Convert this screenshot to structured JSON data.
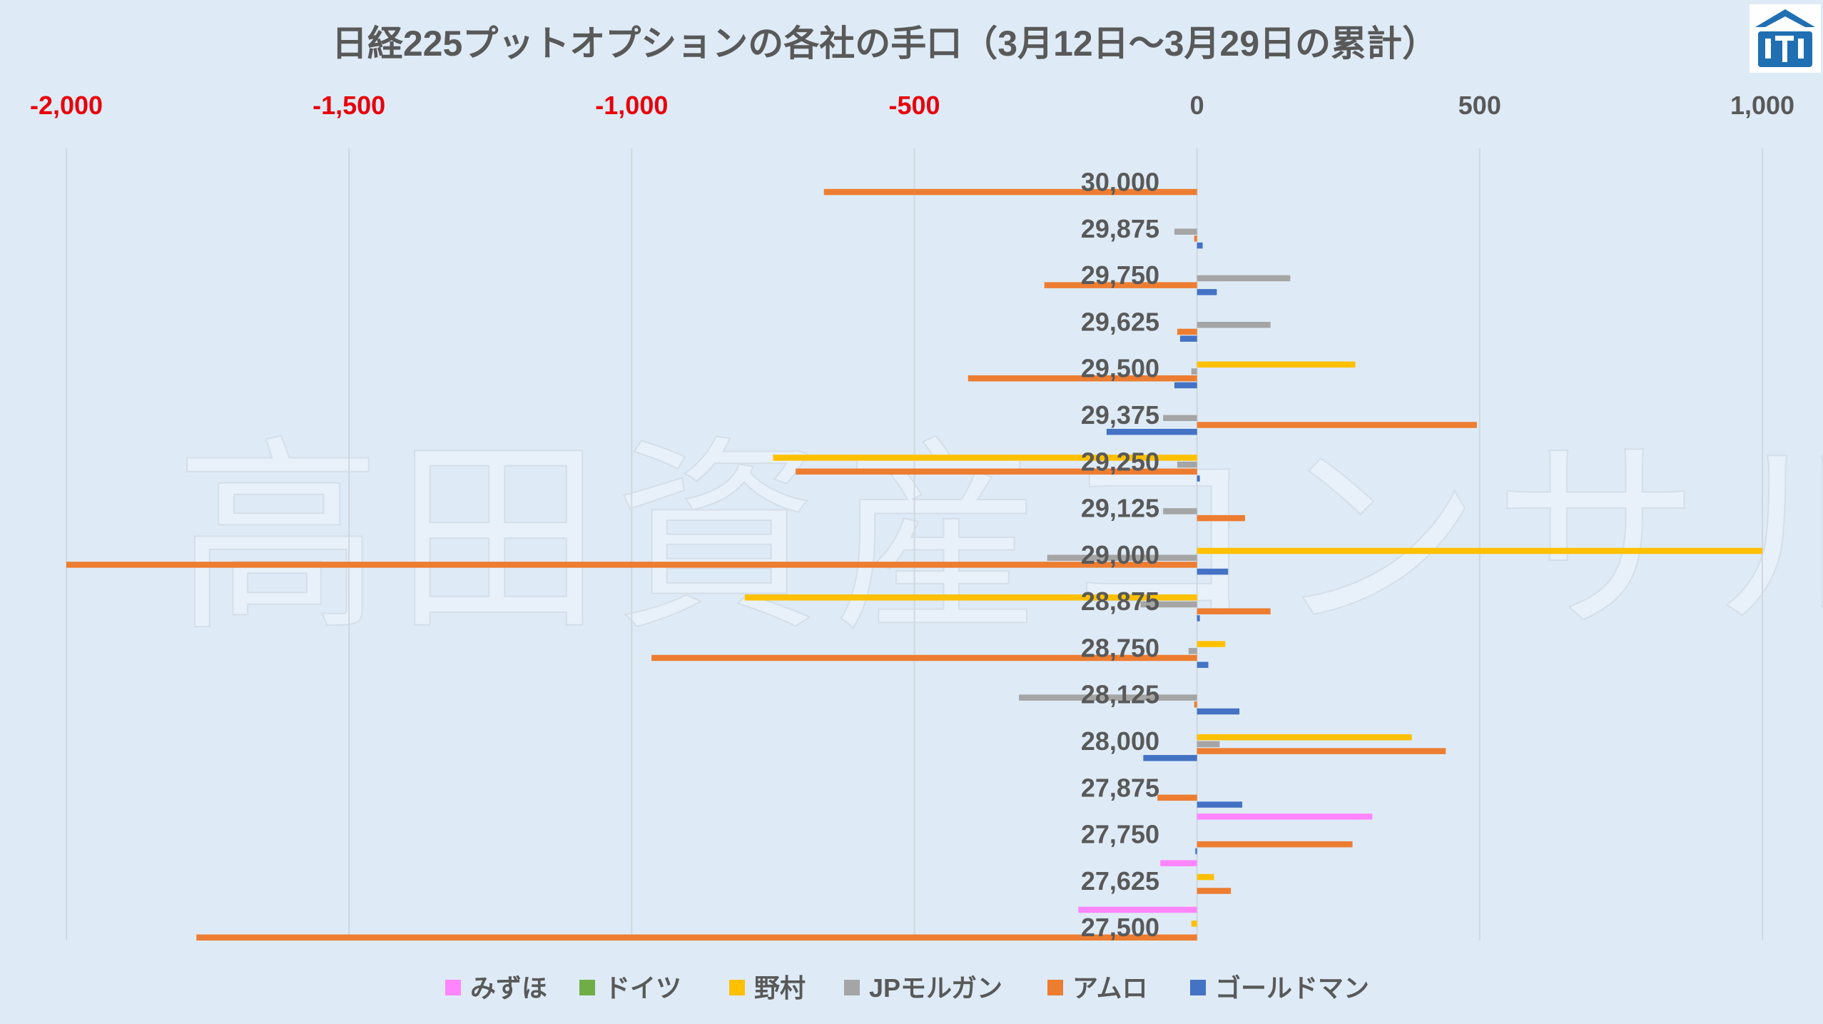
{
  "title": "日経225プットオプションの各社の手口（3月12日～3月29日の累計）",
  "watermark": "高田資産コンサル",
  "logo_icon": "building-emblem-icon",
  "colors": {
    "background": "#deebf6",
    "grid": "#d0d7df",
    "negative_tick": "#e8000b",
    "positive_tick": "#595959",
    "logo": "#1f6fb2"
  },
  "chart_data": {
    "type": "bar",
    "orientation": "horizontal",
    "title": "日経225プットオプションの各社の手口（3月12日～3月29日の累計）",
    "xlim": [
      -2000,
      1000
    ],
    "xticks": [
      -2000,
      -1500,
      -1000,
      -500,
      0,
      500,
      1000
    ],
    "xtick_labels": [
      "-2,000",
      "-1,500",
      "-1,000",
      "-500",
      "0",
      "500",
      "1,000"
    ],
    "grid": true,
    "legend_position": "bottom",
    "categories": [
      "30,000",
      "29,875",
      "29,750",
      "29,625",
      "29,500",
      "29,375",
      "29,250",
      "29,125",
      "29,000",
      "28,875",
      "28,750",
      "28,125",
      "28,000",
      "27,875",
      "27,750",
      "27,625",
      "27,500"
    ],
    "series": [
      {
        "name": "みずほ",
        "color": "#ff85ff",
        "values": [
          0,
          0,
          0,
          0,
          0,
          0,
          0,
          0,
          0,
          0,
          0,
          0,
          0,
          0,
          310,
          -65,
          -210
        ]
      },
      {
        "name": "ドイツ",
        "color": "#70ad47",
        "values": [
          0,
          0,
          0,
          0,
          0,
          0,
          0,
          0,
          0,
          0,
          0,
          0,
          0,
          0,
          0,
          0,
          0
        ]
      },
      {
        "name": "野村",
        "color": "#ffc000",
        "values": [
          0,
          0,
          0,
          0,
          280,
          0,
          -750,
          0,
          1000,
          -800,
          50,
          0,
          380,
          0,
          0,
          30,
          -10
        ]
      },
      {
        "name": "JPモルガン",
        "color": "#a5a5a5",
        "values": [
          0,
          -40,
          165,
          130,
          -10,
          -60,
          -35,
          -60,
          -265,
          -100,
          -15,
          -315,
          40,
          0,
          0,
          0,
          0
        ]
      },
      {
        "name": "アムロ",
        "color": "#ed7d31",
        "values": [
          -660,
          -5,
          -270,
          -35,
          -405,
          495,
          -710,
          85,
          -2000,
          130,
          -965,
          -5,
          440,
          -70,
          275,
          60,
          -1770
        ]
      },
      {
        "name": "ゴールドマン",
        "color": "#4472c4",
        "values": [
          0,
          10,
          35,
          -30,
          -40,
          -160,
          5,
          0,
          55,
          5,
          20,
          75,
          -95,
          80,
          -3,
          0,
          0
        ]
      }
    ]
  },
  "legend": [
    {
      "label": "みずほ",
      "color": "#ff85ff"
    },
    {
      "label": "ドイツ",
      "color": "#70ad47"
    },
    {
      "label": "野村",
      "color": "#ffc000"
    },
    {
      "label": "JPモルガン",
      "color": "#a5a5a5"
    },
    {
      "label": "アムロ",
      "color": "#ed7d31"
    },
    {
      "label": "ゴールドマン",
      "color": "#4472c4"
    }
  ]
}
